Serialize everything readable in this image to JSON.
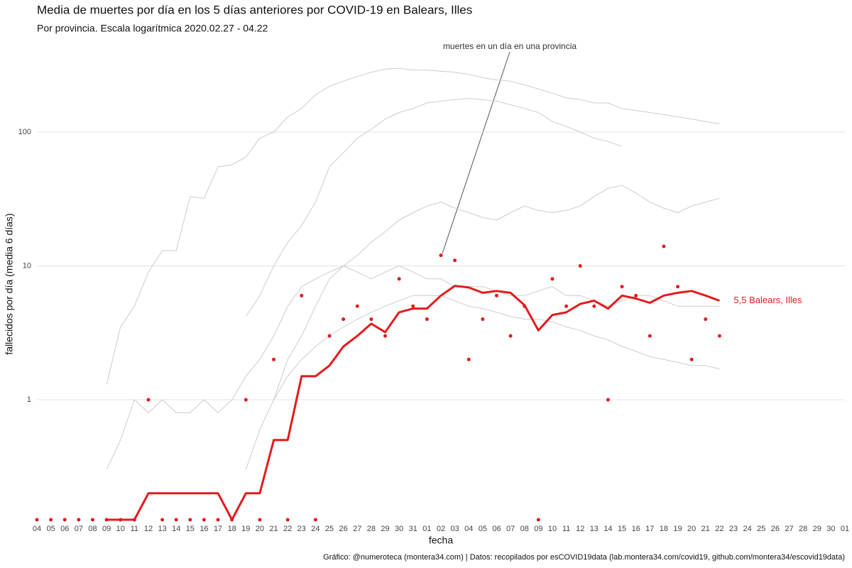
{
  "chart_data": {
    "type": "line",
    "title": "Media de muertes por día en los 5 días anteriores por COVID-19 en Balears, Illes",
    "subtitle": "Por provincia. Escala logarítmica  2020.02.27 - 04.22",
    "xlabel": "fecha",
    "ylabel": "fallecidos por día (media 6 días)",
    "caption": "Gráfico: @numeroteca (montera34.com) | Datos: recopilados por esCOVID19data (lab.montera34.com/covid19, github.com/montera34/escovid19data)",
    "annotation": "muertes en un día en una provincia",
    "end_label": "5,5 Balears, Illes",
    "log_scale": true,
    "grid": true,
    "ylim": [
      0.127,
      466
    ],
    "yticks": [
      1,
      10,
      100
    ],
    "categories": [
      "04",
      "05",
      "06",
      "07",
      "08",
      "09",
      "10",
      "11",
      "12",
      "13",
      "14",
      "15",
      "16",
      "17",
      "18",
      "19",
      "20",
      "21",
      "22",
      "23",
      "24",
      "25",
      "26",
      "27",
      "28",
      "29",
      "30",
      "31",
      "01",
      "02",
      "03",
      "04",
      "05",
      "06",
      "07",
      "08",
      "09",
      "10",
      "11",
      "12",
      "13",
      "14",
      "15",
      "16",
      "17",
      "18",
      "19",
      "20",
      "21",
      "22",
      "23",
      "24",
      "25",
      "26",
      "27",
      "28",
      "29",
      "30",
      "01"
    ],
    "series": [
      {
        "color": "#cccccc",
        "values": [
          null,
          null,
          null,
          null,
          null,
          1.3,
          3.5,
          5,
          9,
          13,
          13,
          33,
          32,
          55,
          57,
          65,
          90,
          100,
          130,
          150,
          190,
          220,
          240,
          260,
          280,
          295,
          300,
          290,
          290,
          285,
          280,
          270,
          255,
          245,
          240,
          225,
          210,
          195,
          180,
          175,
          165,
          165,
          150,
          145,
          140,
          135,
          130,
          125,
          120,
          115,
          null,
          null,
          null,
          null,
          null,
          null,
          null,
          null,
          null
        ]
      },
      {
        "color": "#cccccc",
        "values": [
          null,
          null,
          null,
          null,
          null,
          null,
          null,
          null,
          null,
          null,
          null,
          null,
          null,
          null,
          null,
          4.2,
          6,
          10,
          15,
          20,
          30,
          55,
          70,
          90,
          105,
          125,
          140,
          150,
          165,
          170,
          175,
          178,
          175,
          170,
          160,
          150,
          140,
          120,
          110,
          100,
          90,
          85,
          78,
          null,
          null,
          null,
          null,
          null,
          null,
          null,
          null,
          null,
          null,
          null,
          null,
          null,
          null,
          null,
          null
        ]
      },
      {
        "color": "#cccccc",
        "values": [
          null,
          null,
          null,
          null,
          null,
          null,
          null,
          null,
          null,
          null,
          null,
          null,
          null,
          null,
          null,
          null,
          null,
          1,
          2,
          3,
          5,
          8,
          10,
          12,
          15,
          18,
          22,
          25,
          28,
          30,
          27,
          25,
          23,
          22,
          25,
          28,
          26,
          25,
          26,
          28,
          33,
          38,
          40,
          35,
          30,
          27,
          25,
          28,
          30,
          32,
          null,
          null,
          null,
          null,
          null,
          null,
          null,
          null,
          null
        ]
      },
      {
        "color": "#cccccc",
        "values": [
          null,
          null,
          null,
          null,
          null,
          null,
          null,
          null,
          null,
          null,
          null,
          null,
          null,
          null,
          null,
          0.3,
          0.6,
          1,
          1.5,
          2,
          2.5,
          3,
          3.5,
          4,
          4.5,
          5,
          5.5,
          6,
          6,
          6,
          5.5,
          5,
          4.8,
          4.5,
          4.2,
          4,
          4,
          3.8,
          3.5,
          3.3,
          3,
          2.8,
          2.5,
          2.3,
          2.1,
          2,
          1.9,
          1.8,
          1.8,
          1.7,
          null,
          null,
          null,
          null,
          null,
          null,
          null,
          null,
          null
        ]
      },
      {
        "color": "#cccccc",
        "values": [
          null,
          null,
          null,
          null,
          null,
          0.3,
          0.5,
          1,
          0.8,
          1,
          0.8,
          0.8,
          1,
          0.8,
          1,
          1.5,
          2,
          3,
          5,
          7,
          8,
          9,
          10,
          9,
          8,
          9,
          10,
          9,
          8,
          8,
          7,
          7,
          7,
          6.5,
          6,
          6,
          6.5,
          7,
          6,
          6,
          5.5,
          5,
          5.5,
          6,
          6,
          5.5,
          5,
          5,
          5,
          5,
          null,
          null,
          null,
          null,
          null,
          null,
          null,
          null,
          null
        ]
      },
      {
        "name": "Balears, Illes",
        "color": "#e31a1c",
        "values": [
          null,
          null,
          null,
          null,
          null,
          0,
          0,
          0,
          0.2,
          0.2,
          0.2,
          0.2,
          0.2,
          0.2,
          0,
          0.2,
          0.2,
          0.5,
          0.5,
          1.5,
          1.5,
          1.8,
          2.5,
          3,
          3.7,
          3.2,
          4.5,
          4.8,
          4.8,
          6,
          7.1,
          6.9,
          6.3,
          6.5,
          6.3,
          5.1,
          3.3,
          4.3,
          4.5,
          5.2,
          5.5,
          4.8,
          6,
          5.7,
          5.3,
          6,
          6.3,
          6.5,
          6,
          5.5,
          null,
          null,
          null,
          null,
          null,
          null,
          null,
          null,
          null
        ],
        "daily": [
          0,
          0,
          0,
          0,
          0,
          0,
          0,
          0,
          1,
          0,
          0,
          0,
          0,
          0,
          0,
          1,
          0,
          2,
          0,
          6,
          0,
          3,
          4,
          5,
          4,
          3,
          8,
          5,
          4,
          12,
          11,
          2,
          4,
          6,
          3,
          5,
          0,
          8,
          5,
          10,
          5,
          1,
          7,
          6,
          3,
          14,
          7,
          2,
          4,
          3,
          null,
          null,
          null,
          null,
          null,
          null,
          null,
          null,
          null
        ]
      }
    ]
  }
}
